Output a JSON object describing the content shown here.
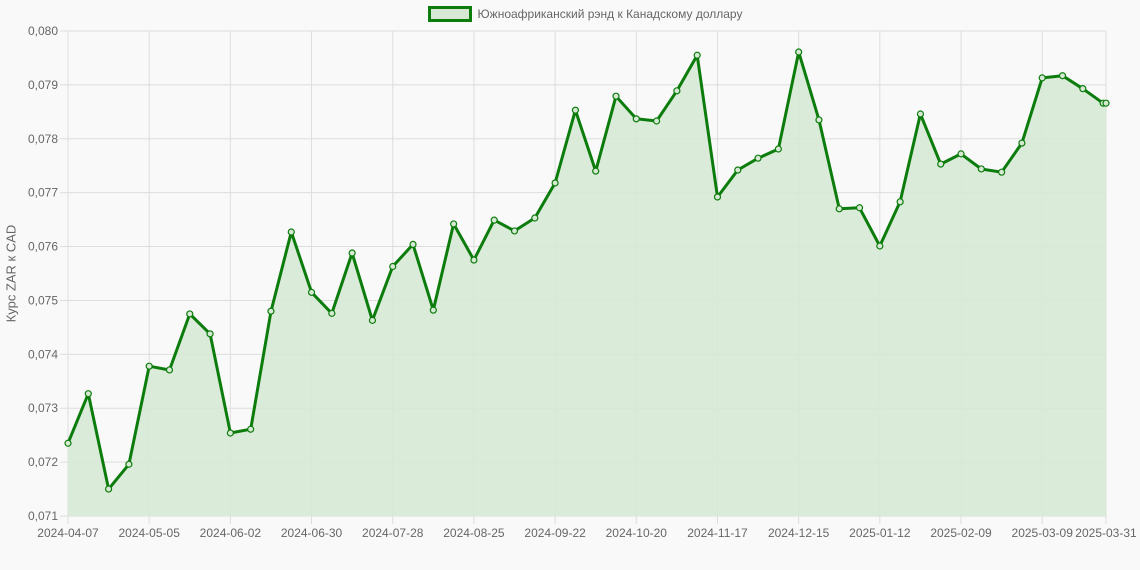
{
  "chart_data": {
    "type": "line",
    "title": "",
    "legend": [
      "Южноафриканский рэнд к Канадскому доллару"
    ],
    "legend_position": "top",
    "xlabel": "",
    "ylabel": "Курс ZAR к CAD",
    "ylim": [
      0.071,
      0.08
    ],
    "y_ticks": [
      "0,071",
      "0,072",
      "0,073",
      "0,074",
      "0,075",
      "0,076",
      "0,077",
      "0,078",
      "0,079",
      "0,080"
    ],
    "x_ticks": [
      "2024-04-07",
      "2024-05-05",
      "2024-06-02",
      "2024-06-30",
      "2024-07-28",
      "2024-08-25",
      "2024-09-22",
      "2024-10-20",
      "2024-11-17",
      "2024-12-15",
      "2025-01-12",
      "2025-02-09",
      "2025-03-09",
      "2025-03-31"
    ],
    "grid": true,
    "fill": true,
    "colors": {
      "line": "#0c7c0c",
      "fill": "#d7e9d5",
      "grid": "#dddddd",
      "background": "#f9f9f9"
    },
    "x": [
      "2024-04-07",
      "2024-04-14",
      "2024-04-21",
      "2024-04-28",
      "2024-05-05",
      "2024-05-12",
      "2024-05-19",
      "2024-05-26",
      "2024-06-02",
      "2024-06-09",
      "2024-06-16",
      "2024-06-23",
      "2024-06-30",
      "2024-07-07",
      "2024-07-14",
      "2024-07-21",
      "2024-07-28",
      "2024-08-04",
      "2024-08-11",
      "2024-08-18",
      "2024-08-25",
      "2024-09-01",
      "2024-09-08",
      "2024-09-15",
      "2024-09-22",
      "2024-09-29",
      "2024-10-06",
      "2024-10-13",
      "2024-10-20",
      "2024-10-27",
      "2024-11-03",
      "2024-11-10",
      "2024-11-17",
      "2024-11-24",
      "2024-12-01",
      "2024-12-08",
      "2024-12-15",
      "2024-12-22",
      "2024-12-29",
      "2025-01-05",
      "2025-01-12",
      "2025-01-19",
      "2025-01-26",
      "2025-02-02",
      "2025-02-09",
      "2025-02-16",
      "2025-02-23",
      "2025-03-02",
      "2025-03-09",
      "2025-03-16",
      "2025-03-23",
      "2025-03-30",
      "2025-03-31"
    ],
    "series": [
      {
        "name": "Южноафриканский рэнд к Канадскому доллару",
        "values": [
          0.07235,
          0.07327,
          0.0715,
          0.07196,
          0.07378,
          0.07371,
          0.07475,
          0.07438,
          0.07254,
          0.07261,
          0.0748,
          0.07627,
          0.07515,
          0.07476,
          0.07588,
          0.07463,
          0.07563,
          0.07604,
          0.07482,
          0.07642,
          0.07575,
          0.07649,
          0.07629,
          0.07653,
          0.07718,
          0.07853,
          0.0774,
          0.07879,
          0.07837,
          0.07833,
          0.07889,
          0.07955,
          0.07692,
          0.07742,
          0.07764,
          0.07781,
          0.07961,
          0.07835,
          0.0767,
          0.07672,
          0.07601,
          0.07683,
          0.07846,
          0.07753,
          0.07772,
          0.07744,
          0.07738,
          0.07792,
          0.07913,
          0.07917,
          0.07893,
          0.07866,
          0.07866
        ]
      }
    ]
  }
}
